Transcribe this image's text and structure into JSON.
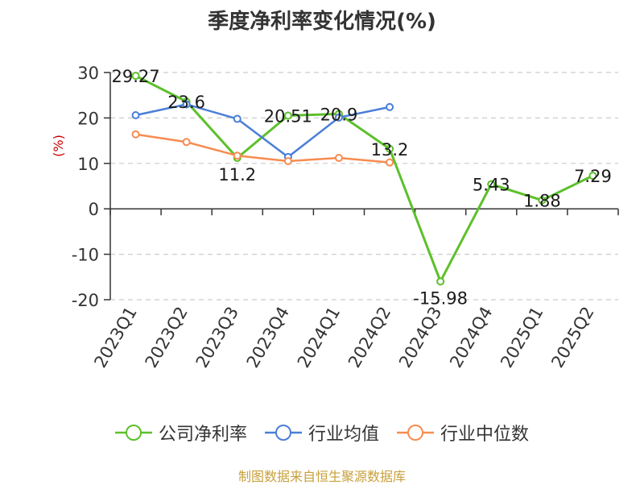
{
  "chart_data": {
    "type": "line",
    "title": "季度净利率变化情况(%)",
    "ylabel": "(%)",
    "categories": [
      "2023Q1",
      "2023Q2",
      "2023Q3",
      "2023Q4",
      "2024Q1",
      "2024Q2",
      "2024Q3",
      "2024Q4",
      "2025Q1",
      "2025Q2"
    ],
    "ylim": [
      -20,
      30
    ],
    "yticks": [
      30,
      20,
      10,
      0,
      -10,
      -20
    ],
    "grid": true,
    "legend_position": "bottom",
    "series": [
      {
        "name": "公司净利率",
        "color": "#5cc02a",
        "values": [
          29.27,
          23.6,
          11.2,
          20.51,
          20.9,
          13.2,
          -15.98,
          5.43,
          1.88,
          7.29
        ],
        "labels": [
          "29.27",
          "23.6",
          "11.2",
          "20.51",
          "20.9",
          "13.2",
          "-15.98",
          "5.43",
          "1.88",
          "7.29"
        ]
      },
      {
        "name": "行业均值",
        "color": "#4a7fd8",
        "values": [
          20.6,
          23.0,
          19.8,
          11.4,
          20.1,
          22.4,
          null,
          null,
          null,
          null
        ]
      },
      {
        "name": "行业中位数",
        "color": "#f78c50",
        "values": [
          16.4,
          14.7,
          11.7,
          10.5,
          11.2,
          10.2,
          null,
          null,
          null,
          null
        ]
      }
    ]
  },
  "source_note": "制图数据来自恒生聚源数据库"
}
